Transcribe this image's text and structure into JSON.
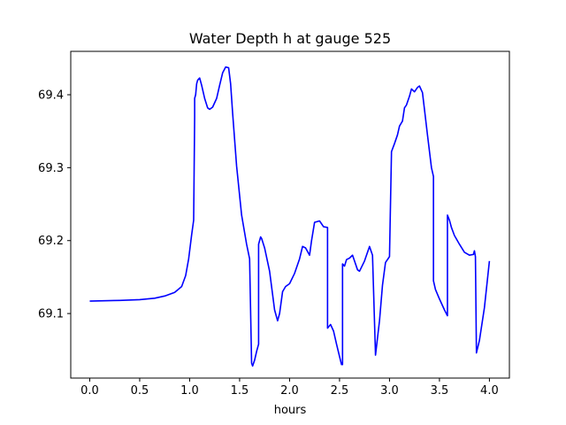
{
  "chart_data": {
    "type": "line",
    "title": "Water Depth h at gauge 525",
    "xlabel": "hours",
    "ylabel": "",
    "xlim": [
      -0.19,
      4.2
    ],
    "ylim": [
      69.0115,
      69.4595
    ],
    "xticks": [
      0.0,
      0.5,
      1.0,
      1.5,
      2.0,
      2.5,
      3.0,
      3.5,
      4.0
    ],
    "xtick_labels": [
      "0.0",
      "0.5",
      "1.0",
      "1.5",
      "2.0",
      "2.5",
      "3.0",
      "3.5",
      "4.0"
    ],
    "yticks": [
      69.1,
      69.2,
      69.3,
      69.4
    ],
    "ytick_labels": [
      "69.1",
      "69.2",
      "69.3",
      "69.4"
    ],
    "grid": false,
    "series": [
      {
        "color": "#0000ff",
        "x": [
          0.0,
          0.3,
          0.5,
          0.65,
          0.75,
          0.85,
          0.92,
          0.96,
          0.99,
          1.02,
          1.04,
          1.05,
          1.05,
          1.06,
          1.07,
          1.08,
          1.1,
          1.12,
          1.15,
          1.18,
          1.2,
          1.23,
          1.27,
          1.3,
          1.33,
          1.36,
          1.39,
          1.41,
          1.43,
          1.47,
          1.52,
          1.57,
          1.6,
          1.62,
          1.63,
          1.65,
          1.67,
          1.69,
          1.69,
          1.71,
          1.72,
          1.75,
          1.8,
          1.85,
          1.88,
          1.9,
          1.93,
          1.96,
          2.0,
          2.05,
          2.1,
          2.13,
          2.16,
          2.2,
          2.22,
          2.25,
          2.3,
          2.34,
          2.38,
          2.38,
          2.41,
          2.44,
          2.47,
          2.5,
          2.52,
          2.53,
          2.53,
          2.55,
          2.57,
          2.6,
          2.63,
          2.65,
          2.68,
          2.7,
          2.75,
          2.8,
          2.83,
          2.86,
          2.9,
          2.93,
          2.96,
          2.99,
          3.0,
          3.02,
          3.05,
          3.08,
          3.1,
          3.13,
          3.15,
          3.17,
          3.2,
          3.22,
          3.25,
          3.28,
          3.3,
          3.33,
          3.35,
          3.38,
          3.42,
          3.44,
          3.44,
          3.46,
          3.5,
          3.55,
          3.58,
          3.58,
          3.6,
          3.62,
          3.65,
          3.7,
          3.75,
          3.8,
          3.84,
          3.85,
          3.86,
          3.87,
          3.9,
          3.95,
          4.0
        ],
        "values": [
          69.117,
          69.118,
          69.119,
          69.121,
          69.124,
          69.129,
          69.137,
          69.152,
          69.175,
          69.208,
          69.228,
          69.37,
          69.395,
          69.4,
          69.415,
          69.42,
          69.423,
          69.413,
          69.395,
          69.382,
          69.38,
          69.383,
          69.395,
          69.413,
          69.43,
          69.438,
          69.437,
          69.415,
          69.375,
          69.302,
          69.235,
          69.195,
          69.175,
          69.032,
          69.028,
          69.036,
          69.048,
          69.058,
          69.195,
          69.205,
          69.203,
          69.19,
          69.158,
          69.105,
          69.09,
          69.1,
          69.13,
          69.137,
          69.141,
          69.155,
          69.175,
          69.192,
          69.19,
          69.18,
          69.2,
          69.225,
          69.227,
          69.219,
          69.218,
          69.08,
          69.085,
          69.076,
          69.058,
          69.041,
          69.03,
          69.03,
          69.168,
          69.165,
          69.174,
          69.176,
          69.18,
          69.172,
          69.16,
          69.158,
          69.172,
          69.192,
          69.18,
          69.043,
          69.09,
          69.139,
          69.17,
          69.176,
          69.178,
          69.322,
          69.333,
          69.345,
          69.357,
          69.364,
          69.382,
          69.386,
          69.398,
          69.408,
          69.404,
          69.41,
          69.412,
          69.403,
          69.38,
          69.345,
          69.3,
          69.288,
          69.145,
          69.133,
          69.12,
          69.105,
          69.097,
          69.235,
          69.228,
          69.218,
          69.207,
          69.195,
          69.184,
          69.18,
          69.181,
          69.186,
          69.178,
          69.046,
          69.063,
          69.108,
          69.172
        ]
      }
    ]
  }
}
